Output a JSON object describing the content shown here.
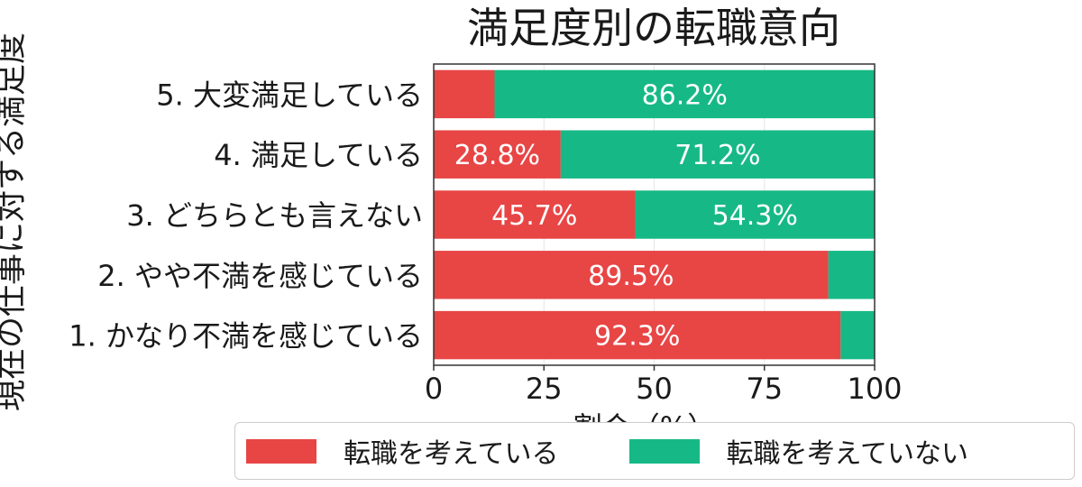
{
  "chart_data": {
    "type": "bar",
    "orientation": "horizontal",
    "stacked": true,
    "title": "満足度別の転職意向",
    "xlabel": "割合（%）",
    "ylabel": "現在の仕事に対する満足度",
    "xlim": [
      0,
      100
    ],
    "xticks": [
      "0",
      "25",
      "50",
      "75",
      "100"
    ],
    "grid": true,
    "legend_position": "bottom",
    "categories": [
      "5. 大変満足している",
      "4. 満足している",
      "3. どちらとも言えない",
      "2. やや不満を感じている",
      "1. かなり不満を感じている"
    ],
    "series": [
      {
        "name": "転職を考えている",
        "color": "#e84545",
        "values": [
          13.8,
          28.8,
          45.7,
          89.5,
          92.3
        ],
        "labels": [
          "",
          "28.8%",
          "45.7%",
          "89.5%",
          "92.3%"
        ]
      },
      {
        "name": "転職を考えていない",
        "color": "#16b985",
        "values": [
          86.2,
          71.2,
          54.3,
          10.5,
          7.7
        ],
        "labels": [
          "86.2%",
          "71.2%",
          "54.3%",
          "",
          ""
        ]
      }
    ]
  }
}
